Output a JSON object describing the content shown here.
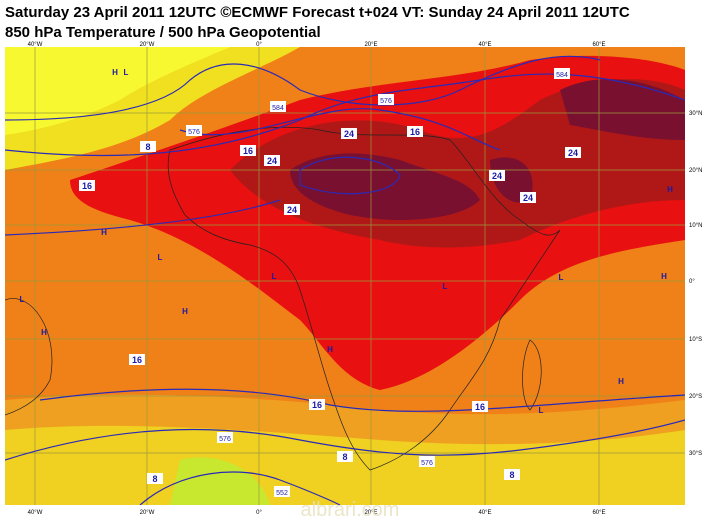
{
  "header": {
    "title_line1": "Saturday 23 April 2011 12UTC ©ECMWF Forecast t+024 VT: Sunday 24 April 2011 12UTC",
    "title_line2": "850 hPa Temperature / 500 hPa Geopotential"
  },
  "map": {
    "lon_labels": [
      "40°W",
      "20°W",
      "0°",
      "20°E",
      "40°E",
      "60°E"
    ],
    "lat_labels": [
      "30°N",
      "20°N",
      "10°N",
      "0°",
      "10°S",
      "20°S",
      "30°S"
    ],
    "temperature_labels": [
      "24",
      "24",
      "24",
      "24",
      "24",
      "24",
      "16",
      "16",
      "16",
      "16",
      "16",
      "16",
      "8",
      "8",
      "8",
      "8"
    ],
    "geopotential_labels": [
      "584",
      "576",
      "576",
      "576",
      "576",
      "584",
      "552"
    ],
    "pressure_markers": [
      "H",
      "L",
      "H",
      "H",
      "H",
      "H",
      "H",
      "H",
      "H",
      "L",
      "L",
      "L",
      "L",
      "L",
      "L"
    ],
    "watermark": "albrari.com"
  }
}
